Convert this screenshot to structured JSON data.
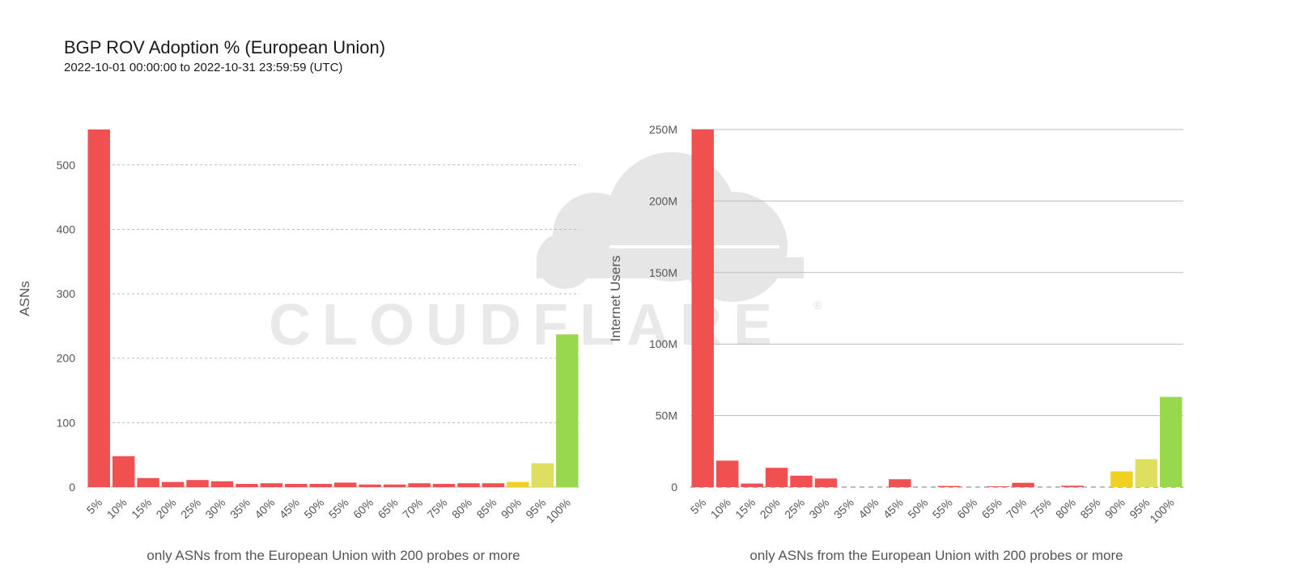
{
  "header": {
    "title": "BGP ROV Adoption % (European Union)",
    "subtitle": "2022-10-01 00:00:00 to 2022-10-31 23:59:59 (UTC)"
  },
  "watermark": {
    "text": "CLOUDFLARE",
    "registered_mark": "®"
  },
  "colors": {
    "red": "#f05050",
    "yellow": "#f0d020",
    "light_yellow": "#dede60",
    "green": "#98d84c",
    "grid": "#bbbbbb",
    "zero_dash": "#bbbbbb"
  },
  "chart_data": [
    {
      "type": "bar",
      "categories": [
        "5%",
        "10%",
        "15%",
        "20%",
        "25%",
        "30%",
        "35%",
        "40%",
        "45%",
        "50%",
        "55%",
        "60%",
        "65%",
        "70%",
        "75%",
        "80%",
        "85%",
        "90%",
        "95%",
        "100%"
      ],
      "values": [
        555,
        48,
        14,
        8,
        11,
        9,
        5,
        6,
        5,
        5,
        7,
        4,
        4,
        6,
        5,
        6,
        6,
        8,
        37,
        237
      ],
      "bar_colors": [
        "red",
        "red",
        "red",
        "red",
        "red",
        "red",
        "red",
        "red",
        "red",
        "red",
        "red",
        "red",
        "red",
        "red",
        "red",
        "red",
        "red",
        "yellow",
        "light_yellow",
        "green"
      ],
      "title": "",
      "xlabel": "only ASNs from the European Union with 200 probes or more",
      "ylabel": "ASNs",
      "ylim": [
        0,
        555
      ],
      "yticks": [
        0,
        100,
        200,
        300,
        400,
        500
      ],
      "ytick_labels": [
        "0",
        "100",
        "200",
        "300",
        "400",
        "500"
      ],
      "grid": "dashed"
    },
    {
      "type": "bar",
      "categories": [
        "5%",
        "10%",
        "15%",
        "20%",
        "25%",
        "30%",
        "35%",
        "40%",
        "45%",
        "50%",
        "55%",
        "60%",
        "65%",
        "70%",
        "75%",
        "80%",
        "85%",
        "90%",
        "95%",
        "100%"
      ],
      "values": [
        253000000,
        18500000,
        2500000,
        13500000,
        8000000,
        6000000,
        0,
        0,
        5500000,
        0,
        800000,
        0,
        500000,
        3000000,
        0,
        1000000,
        0,
        11000000,
        19500000,
        63000000
      ],
      "bar_colors": [
        "red",
        "red",
        "red",
        "red",
        "red",
        "red",
        "red",
        "red",
        "red",
        "red",
        "red",
        "red",
        "red",
        "red",
        "red",
        "red",
        "red",
        "yellow",
        "light_yellow",
        "green"
      ],
      "title": "",
      "xlabel": "only ASNs from the European Union with 200 probes or more",
      "ylabel": "Internet Users",
      "ylim": [
        0,
        250000000
      ],
      "yticks": [
        0,
        50000000,
        100000000,
        150000000,
        200000000,
        250000000
      ],
      "ytick_labels": [
        "0",
        "50M",
        "100M",
        "150M",
        "200M",
        "250M"
      ],
      "grid": "solid"
    }
  ]
}
